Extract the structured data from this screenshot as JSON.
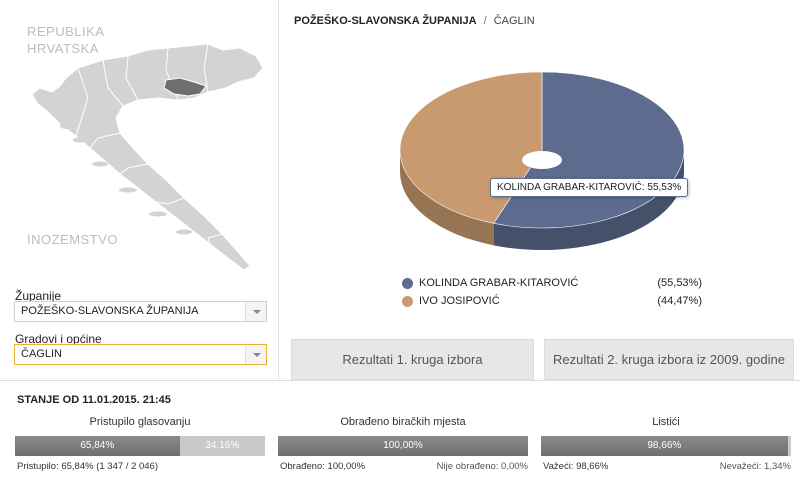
{
  "map": {
    "country_label_line1": "REPUBLIKA",
    "country_label_line2": "HRVATSKA",
    "abroad_label": "INOZEMSTVO"
  },
  "filters": {
    "county_label": "Županije",
    "county_value": "POŽEŠKO-SLAVONSKA ŽUPANIJA",
    "city_label": "Gradovi i općine",
    "city_value": "ČAGLIN"
  },
  "breadcrumb": {
    "county": "POŽEŠKO-SLAVONSKA ŽUPANIJA",
    "separator": "/",
    "city": "ČAGLIN"
  },
  "chart_data": {
    "type": "pie",
    "categories": [
      "KOLINDA GRABAR-KITAROVIĆ",
      "IVO JOSIPOVIĆ"
    ],
    "values": [
      55.53,
      44.47
    ],
    "colors": [
      "#5c6b8e",
      "#c99a70"
    ],
    "tooltip": "KOLINDA GRABAR-KITAROVIĆ: 55,53%",
    "legend": [
      {
        "name": "KOLINDA GRABAR-KITAROVIĆ",
        "pct": "(55,53%)",
        "color": "#5c6b8e"
      },
      {
        "name": "IVO JOSIPOVIĆ",
        "pct": "(44,47%)",
        "color": "#c99a70"
      }
    ]
  },
  "tabs": {
    "round1": "Rezultati 1. kruga izbora",
    "round2_2009": "Rezultati 2. kruga izbora iz 2009. godine"
  },
  "status": {
    "title": "STANJE OD 11.01.2015. 21:45",
    "turnout": {
      "title": "Pristupilo glasovanju",
      "fill_pct": 65.84,
      "fill_label": "65,84%",
      "rest_label": "34,16%",
      "foot_left": "Pristupilo: 65,84% (1 347 / 2 046)",
      "foot_right": ""
    },
    "processed": {
      "title": "Obrađeno biračkih mjesta",
      "fill_pct": 100,
      "fill_label": "100,00%",
      "rest_label": "",
      "foot_left": "Obrađeno: 100,00%",
      "foot_right": "Nije obrađeno: 0,00%"
    },
    "ballots": {
      "title": "Listići",
      "fill_pct": 98.66,
      "fill_label": "98,66%",
      "rest_label": "",
      "foot_left": "Važeći: 98,66%",
      "foot_right": "Nevažeći: 1,34%"
    }
  }
}
